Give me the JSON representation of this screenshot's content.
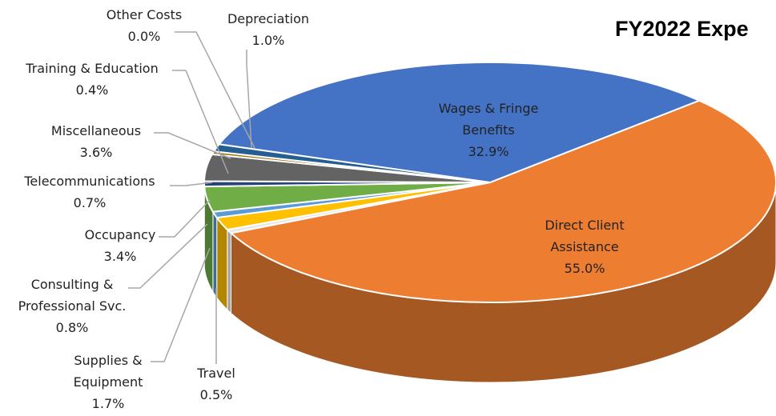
{
  "chart_data": {
    "type": "pie",
    "title": "FY2022 Expe",
    "categories": [
      "Direct Client Assistance",
      "Travel",
      "Supplies & Equipment",
      "Consulting & Professional Svc.",
      "Occupancy",
      "Telecommunications",
      "Miscellaneous",
      "Training & Education",
      "Other Costs",
      "Depreciation",
      "Wages & Fringe Benefits"
    ],
    "values": [
      55.0,
      0.5,
      1.7,
      0.8,
      3.4,
      0.7,
      3.6,
      0.4,
      0.0,
      1.0,
      32.9
    ],
    "value_labels": [
      "55.0%",
      "0.5%",
      "1.7%",
      "0.8%",
      "3.4%",
      "0.7%",
      "3.6%",
      "0.4%",
      "0.0%",
      "1.0%",
      "32.9%"
    ],
    "colors": [
      "#ed7d31",
      "#e8e8e8",
      "#ffc000",
      "#5b9bd5",
      "#70ad47",
      "#264478",
      "#636363",
      "#997300",
      "#7f7f7f",
      "#255e91",
      "#4472c4"
    ]
  }
}
